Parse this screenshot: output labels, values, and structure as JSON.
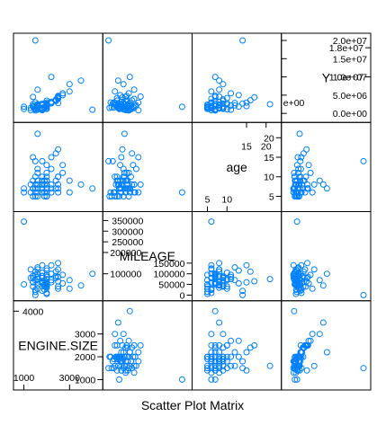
{
  "chart_data": {
    "type": "scatter",
    "subtype": "scatter-plot-matrix",
    "title": "Scatter Plot Matrix",
    "point_color": "#0080ff",
    "grid": false,
    "legend": "none",
    "variables": [
      {
        "name": "ENGINE.SIZE",
        "range": [
          700,
          4300
        ],
        "ticks_inside": [
          1000,
          3000
        ],
        "ticks_inside_labels": [
          "1000",
          "3000"
        ],
        "ticks_outside": [
          1000,
          2000,
          3000
        ],
        "ticks_outside_labels": [
          "1000",
          "2000",
          "3000"
        ],
        "ticks_top_extra": [
          4000
        ],
        "ticks_top_extra_labels": [
          "4000"
        ],
        "values": [
          1000,
          1300,
          1300,
          1400,
          1400,
          1400,
          1500,
          1500,
          1500,
          1500,
          1500,
          1600,
          1600,
          1600,
          1600,
          1600,
          1600,
          1600,
          1800,
          1800,
          1800,
          1800,
          1800,
          1800,
          1800,
          1900,
          1900,
          1900,
          2000,
          2000,
          2000,
          2000,
          2000,
          2000,
          2000,
          2000,
          2000,
          2200,
          2200,
          2200,
          2200,
          2400,
          2400,
          2400,
          2500,
          2500,
          2500,
          2500,
          2500,
          2700,
          2700,
          3000,
          3000,
          3500,
          4000,
          1500,
          2000,
          1400,
          1600,
          2000,
          1800,
          1000,
          2000,
          1400,
          2000,
          1600,
          2500,
          1900,
          1800,
          2200
        ]
      },
      {
        "name": "MILEAGE",
        "range": [
          -10000,
          375000
        ],
        "ticks_inside": [
          100000,
          200000
        ],
        "ticks_inside_labels": [
          "100000",
          "200000"
        ],
        "ticks_top": [
          250000,
          300000,
          350000
        ],
        "ticks_top_labels": [
          "250000",
          "300000",
          "350000"
        ],
        "ticks_outside": [
          0,
          50000,
          100000,
          150000
        ],
        "ticks_outside_labels": [
          "0",
          "50000",
          "100000",
          "150000"
        ],
        "values": [
          50000,
          80000,
          120000,
          40000,
          90000,
          60000,
          25000,
          70000,
          110000,
          15000,
          95000,
          130000,
          85000,
          60000,
          45000,
          75000,
          100000,
          30000,
          55000,
          140000,
          65000,
          20000,
          90000,
          105000,
          80000,
          50000,
          70000,
          40000,
          115000,
          60000,
          125000,
          85000,
          35000,
          95000,
          75000,
          55000,
          45000,
          100000,
          70000,
          140000,
          60000,
          90000,
          110000,
          80000,
          120000,
          40000,
          65000,
          150000,
          85000,
          55000,
          95000,
          30000,
          70000,
          45000,
          100000,
          0,
          10000,
          60000,
          75000,
          5000,
          90000,
          345000,
          50000,
          80000,
          40000,
          120000,
          30000,
          25000,
          60000,
          100000
        ]
      },
      {
        "name": "age",
        "range": [
          2,
          23
        ],
        "ticks_inside": [
          5,
          10
        ],
        "ticks_inside_labels": [
          "5",
          "10"
        ],
        "ticks_outside": [
          5,
          10,
          15,
          20
        ],
        "ticks_outside_labels": [
          "5",
          "10",
          "15",
          "20"
        ],
        "ticks_top_extra": [
          15,
          20
        ],
        "ticks_top_extra_labels": [
          "15",
          "20"
        ],
        "values": [
          7,
          6,
          8,
          5,
          9,
          7,
          6,
          10,
          8,
          5,
          7,
          12,
          9,
          6,
          8,
          11,
          7,
          5,
          9,
          6,
          8,
          14,
          7,
          10,
          6,
          8,
          5,
          9,
          13,
          7,
          6,
          11,
          8,
          5,
          10,
          7,
          9,
          6,
          12,
          15,
          8,
          7,
          16,
          9,
          6,
          10,
          17,
          8,
          7,
          13,
          11,
          6,
          9,
          8,
          7,
          14,
          6,
          15,
          21,
          5,
          8,
          6,
          5,
          7,
          9,
          8,
          10,
          6,
          8,
          7
        ]
      },
      {
        "name": "Y",
        "range": [
          -1500000,
          21000000
        ],
        "ticks_outside": [
          0,
          5000000,
          10000000,
          15000000,
          20000000
        ],
        "ticks_outside_labels": [
          "0.0e+00",
          "5.0e+06",
          "1.0e+07",
          "1.5e+07",
          "2.0e+07"
        ],
        "ticks_inside": [
          10000000,
          18000000
        ],
        "ticks_inside_labels": [
          "1.0e+07",
          "1.8e+07"
        ],
        "ticks_left_extra": [
          0
        ],
        "ticks_left_extra_labels": [
          "e+00"
        ],
        "values": [
          1200000,
          900000,
          1500000,
          2000000,
          1800000,
          2500000,
          3000000,
          1100000,
          1300000,
          1700000,
          800000,
          2200000,
          1400000,
          1900000,
          1600000,
          1000000,
          2100000,
          2400000,
          1250000,
          850000,
          1550000,
          2700000,
          950000,
          1150000,
          1350000,
          1450000,
          1650000,
          1750000,
          1850000,
          1950000,
          2050000,
          2150000,
          2250000,
          2350000,
          2450000,
          2550000,
          2650000,
          2750000,
          2850000,
          2950000,
          3200000,
          3400000,
          3600000,
          3800000,
          4000000,
          4200000,
          4400000,
          4600000,
          4800000,
          5000000,
          5500000,
          6000000,
          8000000,
          9000000,
          1000000,
          20000000,
          3000000,
          2000000,
          2500000,
          1500000,
          2200000,
          1800000,
          1200000,
          4500000,
          3500000,
          6500000,
          2800000,
          1600000,
          2400000,
          10000000
        ]
      }
    ]
  }
}
